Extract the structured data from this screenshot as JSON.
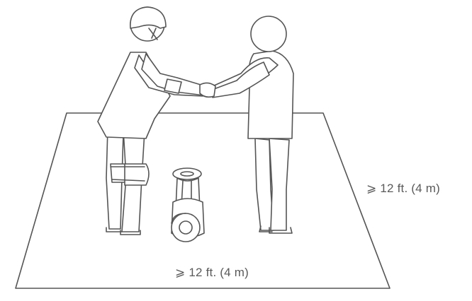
{
  "diagram": {
    "labels": {
      "side_clearance": "⩾ 12 ft. (4 m)",
      "front_clearance": "⩾ 12 ft. (4 m)"
    },
    "line_color": "#555555",
    "background_color": "#ffffff"
  }
}
